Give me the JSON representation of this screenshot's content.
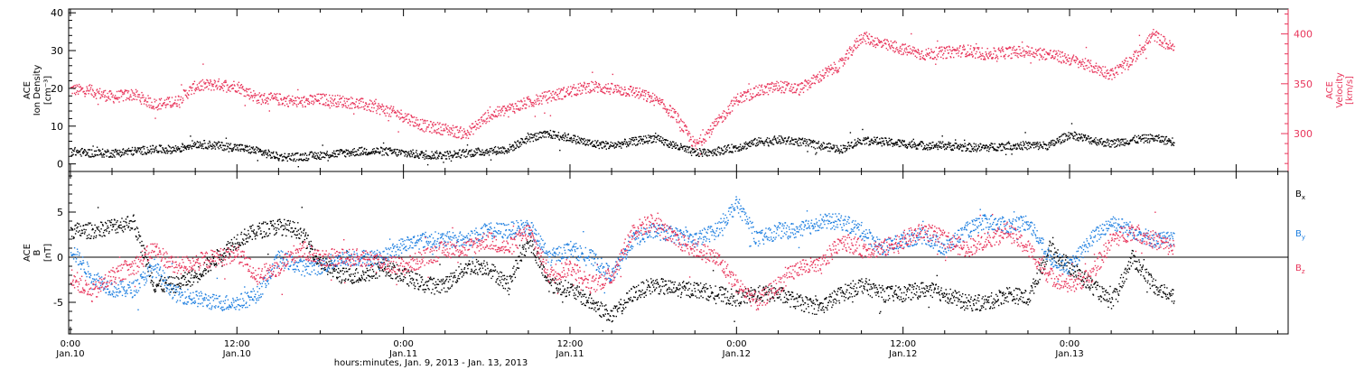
{
  "chart_data": [
    {
      "type": "scatter",
      "panel": "top",
      "ylabel_lines": [
        "ACE",
        "Ion Density",
        "[cm⁻³]"
      ],
      "y2label_lines": [
        "ACE",
        "Velocity",
        "[km/s]"
      ],
      "ylim": [
        -2,
        41
      ],
      "y_ticks": [
        0,
        10,
        20,
        30,
        40
      ],
      "y2lim": [
        262,
        425
      ],
      "y2_ticks": [
        300,
        350,
        400
      ],
      "colors": {
        "density": "#000000",
        "velocity": "#e8345a"
      },
      "series": [
        {
          "key": "density",
          "axis": "left",
          "x_hours": [
            0,
            6,
            12,
            18,
            24,
            30,
            36,
            42,
            48,
            54,
            60,
            66,
            72,
            78,
            84,
            90,
            96,
            102,
            108,
            114,
            120,
            126,
            132,
            138,
            144,
            150,
            156,
            162,
            168,
            174,
            180,
            186,
            192,
            198,
            204,
            210,
            216,
            222,
            228,
            234,
            240,
            246,
            252,
            258,
            264,
            270,
            276,
            282,
            288,
            294,
            300,
            306,
            312,
            318
          ],
          "values": [
            3.5,
            3,
            3,
            3.5,
            4,
            4,
            5.5,
            5,
            4.5,
            3.5,
            2,
            2,
            2.5,
            3,
            3.5,
            3.5,
            3,
            2.5,
            2.5,
            3,
            3.5,
            4,
            7,
            8,
            7,
            5.5,
            5,
            6,
            7,
            5,
            3,
            3.5,
            4.5,
            6,
            6.5,
            6,
            5,
            4,
            6.5,
            6,
            5.5,
            5,
            5,
            4.5,
            4.5,
            5,
            5,
            5,
            8,
            6.5,
            5.5,
            6.5,
            7,
            6
          ]
        },
        {
          "key": "velocity",
          "axis": "right",
          "x_hours": [
            0,
            6,
            12,
            18,
            24,
            30,
            36,
            42,
            48,
            54,
            60,
            66,
            72,
            78,
            84,
            90,
            96,
            102,
            108,
            114,
            120,
            126,
            132,
            138,
            144,
            150,
            156,
            162,
            168,
            174,
            180,
            186,
            192,
            198,
            204,
            210,
            216,
            222,
            228,
            234,
            240,
            246,
            252,
            258,
            264,
            270,
            276,
            282,
            288,
            294,
            300,
            306,
            312,
            318
          ],
          "values": [
            345,
            343,
            337,
            340,
            330,
            332,
            348,
            350,
            348,
            336,
            335,
            332,
            335,
            333,
            330,
            325,
            318,
            308,
            305,
            300,
            318,
            325,
            332,
            338,
            343,
            348,
            345,
            343,
            335,
            320,
            288,
            310,
            335,
            343,
            348,
            345,
            358,
            370,
            398,
            390,
            385,
            380,
            382,
            384,
            380,
            382,
            383,
            380,
            375,
            368,
            360,
            375,
            400,
            385
          ]
        }
      ]
    },
    {
      "type": "scatter",
      "panel": "bottom",
      "ylabel_lines": [
        "ACE",
        "B",
        "[nT]"
      ],
      "ylim": [
        -8.5,
        9.5
      ],
      "y_ticks": [
        -5,
        0,
        5
      ],
      "zero_line": true,
      "xlabel": "hours:minutes, Jan.  9, 2013 - Jan. 13, 2013",
      "xlim": [
        -0.5,
        351
      ],
      "x_ticks_hours": [
        0,
        48,
        96,
        144,
        192,
        240,
        288,
        336
      ],
      "x_ticks_minor_hours": [
        12,
        24,
        36,
        60,
        72,
        84,
        108,
        120,
        132,
        156,
        168,
        180,
        204,
        216,
        228,
        252,
        264,
        276,
        300,
        312,
        324,
        348
      ],
      "x_tick_labels": [
        {
          "time": "0:00",
          "date": "Jan.10"
        },
        {
          "time": "12:00",
          "date": "Jan.10"
        },
        {
          "time": "0:00",
          "date": "Jan.11"
        },
        {
          "time": "12:00",
          "date": "Jan.11"
        },
        {
          "time": "0:00",
          "date": "Jan.12"
        },
        {
          "time": "12:00",
          "date": "Jan.12"
        },
        {
          "time": "0:00",
          "date": "Jan.13"
        }
      ],
      "x_tick_label_hours": [
        0,
        48,
        96,
        144,
        192,
        240,
        288
      ],
      "legend_position": "right",
      "series": [
        {
          "key": "Bx",
          "name": "B",
          "sub": "x",
          "color": "#000000",
          "x_hours": [
            0,
            6,
            12,
            18,
            24,
            30,
            36,
            42,
            48,
            54,
            60,
            66,
            72,
            78,
            84,
            90,
            96,
            102,
            108,
            114,
            120,
            126,
            132,
            138,
            144,
            150,
            156,
            162,
            168,
            174,
            180,
            186,
            192,
            198,
            204,
            210,
            216,
            222,
            228,
            234,
            240,
            246,
            252,
            258,
            264,
            270,
            276,
            282,
            288,
            294,
            300,
            306,
            312,
            318
          ],
          "values": [
            3,
            3,
            3.5,
            4,
            -3,
            -3,
            -2,
            0,
            2,
            3,
            3.5,
            3,
            -0.5,
            -2,
            -2,
            -1,
            -2,
            -3,
            -3,
            -1,
            -1,
            -3,
            2,
            -3,
            -3.5,
            -5,
            -6.5,
            -4,
            -3,
            -3.5,
            -3.5,
            -4,
            -4.5,
            -4,
            -4,
            -5,
            -5.5,
            -4,
            -3,
            -4,
            -4,
            -3.5,
            -4,
            -5,
            -5,
            -4,
            -4.5,
            1,
            -1,
            -3,
            -5,
            0,
            -3,
            -4.5
          ]
        },
        {
          "key": "By",
          "name": "B",
          "sub": "y",
          "color": "#1e7fe0",
          "x_hours": [
            0,
            6,
            12,
            18,
            24,
            30,
            36,
            42,
            48,
            54,
            60,
            66,
            72,
            78,
            84,
            90,
            96,
            102,
            108,
            114,
            120,
            126,
            132,
            138,
            144,
            150,
            156,
            162,
            168,
            174,
            180,
            186,
            192,
            198,
            204,
            210,
            216,
            222,
            228,
            234,
            240,
            246,
            252,
            258,
            264,
            270,
            276,
            282,
            288,
            294,
            300,
            306,
            312,
            318
          ],
          "values": [
            1,
            -2,
            -3.5,
            -3.5,
            -1,
            -4,
            -4.5,
            -5,
            -5,
            -4,
            0,
            -1,
            -1,
            0,
            0,
            0,
            1.5,
            2,
            2,
            2,
            3,
            3,
            3.5,
            0,
            1,
            0,
            -2,
            2,
            3,
            2.5,
            2,
            3,
            6,
            2,
            3,
            3,
            4,
            4,
            3,
            1,
            2,
            2.5,
            1,
            3,
            4,
            3.5,
            4,
            0,
            -1,
            2,
            4,
            3,
            2,
            2
          ]
        },
        {
          "key": "Bz",
          "name": "B",
          "sub": "z",
          "color": "#e8345a",
          "x_hours": [
            0,
            6,
            12,
            18,
            24,
            30,
            36,
            42,
            48,
            54,
            60,
            66,
            72,
            78,
            84,
            90,
            96,
            102,
            108,
            114,
            120,
            126,
            132,
            138,
            144,
            150,
            156,
            162,
            168,
            174,
            180,
            186,
            192,
            198,
            204,
            210,
            216,
            222,
            228,
            234,
            240,
            246,
            252,
            258,
            264,
            270,
            276,
            282,
            288,
            294,
            300,
            306,
            312,
            318
          ],
          "values": [
            -2,
            -4,
            -2,
            -1,
            1,
            -1,
            -0.5,
            0,
            0.5,
            -2,
            -1,
            1,
            0,
            0,
            0,
            -0.5,
            -1,
            0,
            1,
            1,
            2,
            1,
            3,
            -2,
            -1,
            -3,
            -2,
            3,
            4,
            2,
            1,
            0,
            -3,
            -5,
            -3,
            -1,
            -1,
            2,
            1,
            1,
            2,
            3,
            2,
            1,
            2,
            3,
            1,
            -2,
            -3,
            -2,
            2,
            3,
            2,
            1
          ]
        }
      ]
    }
  ]
}
